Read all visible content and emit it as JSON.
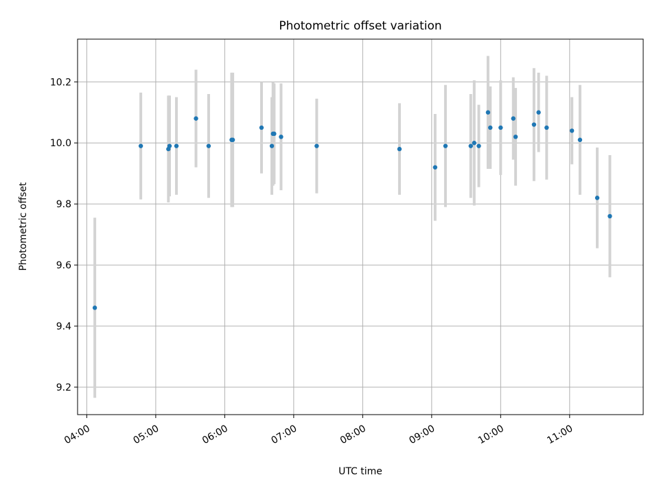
{
  "chart_data": {
    "type": "scatter",
    "title": "Photometric offset variation",
    "xlabel": "UTC time",
    "ylabel": "Photometric offset",
    "x_tick_labels": [
      "04:00",
      "05:00",
      "06:00",
      "07:00",
      "08:00",
      "09:00",
      "10:00",
      "11:00"
    ],
    "y_tick_labels": [
      "9.2",
      "9.4",
      "9.6",
      "9.8",
      "10.0",
      "10.2"
    ],
    "y_ticks": [
      9.2,
      9.4,
      9.6,
      9.8,
      10.0,
      10.2
    ],
    "x_ticks": [
      "04:00",
      "05:00",
      "06:00",
      "07:00",
      "08:00",
      "09:00",
      "10:00",
      "11:00"
    ],
    "xlim": [
      "03:52",
      "12:04"
    ],
    "ylim": [
      9.11,
      10.34
    ],
    "grid": true,
    "marker_color": "#1f77b4",
    "errorbar_color": "#d3d3d3",
    "points": [
      {
        "t": "04:07",
        "y": 9.46,
        "err": 0.295
      },
      {
        "t": "04:47",
        "y": 9.99,
        "err": 0.175
      },
      {
        "t": "05:11",
        "y": 9.98,
        "err": 0.175
      },
      {
        "t": "05:12",
        "y": 9.99,
        "err": 0.165
      },
      {
        "t": "05:18",
        "y": 9.99,
        "err": 0.16
      },
      {
        "t": "05:35",
        "y": 10.08,
        "err": 0.16
      },
      {
        "t": "05:46",
        "y": 9.99,
        "err": 0.17
      },
      {
        "t": "06:06",
        "y": 10.01,
        "err": 0.22
      },
      {
        "t": "06:07",
        "y": 10.01,
        "err": 0.22
      },
      {
        "t": "06:32",
        "y": 10.05,
        "err": 0.15
      },
      {
        "t": "06:41",
        "y": 9.99,
        "err": 0.16
      },
      {
        "t": "06:42",
        "y": 10.03,
        "err": 0.17
      },
      {
        "t": "06:43",
        "y": 10.03,
        "err": 0.165
      },
      {
        "t": "06:49",
        "y": 10.02,
        "err": 0.175
      },
      {
        "t": "07:20",
        "y": 9.99,
        "err": 0.155
      },
      {
        "t": "08:32",
        "y": 9.98,
        "err": 0.15
      },
      {
        "t": "09:03",
        "y": 9.92,
        "err": 0.175
      },
      {
        "t": "09:12",
        "y": 9.99,
        "err": 0.2
      },
      {
        "t": "09:34",
        "y": 9.99,
        "err": 0.17
      },
      {
        "t": "09:37",
        "y": 10.0,
        "err": 0.205
      },
      {
        "t": "09:41",
        "y": 9.99,
        "err": 0.135
      },
      {
        "t": "09:49",
        "y": 10.1,
        "err": 0.185
      },
      {
        "t": "09:51",
        "y": 10.05,
        "err": 0.135
      },
      {
        "t": "10:00",
        "y": 10.05,
        "err": 0.155
      },
      {
        "t": "10:11",
        "y": 10.08,
        "err": 0.135
      },
      {
        "t": "10:13",
        "y": 10.02,
        "err": 0.16
      },
      {
        "t": "10:29",
        "y": 10.06,
        "err": 0.185
      },
      {
        "t": "10:33",
        "y": 10.1,
        "err": 0.13
      },
      {
        "t": "10:40",
        "y": 10.05,
        "err": 0.17
      },
      {
        "t": "11:02",
        "y": 10.04,
        "err": 0.11
      },
      {
        "t": "11:09",
        "y": 10.01,
        "err": 0.18
      },
      {
        "t": "11:24",
        "y": 9.82,
        "err": 0.165
      },
      {
        "t": "11:35",
        "y": 9.76,
        "err": 0.2
      }
    ]
  }
}
